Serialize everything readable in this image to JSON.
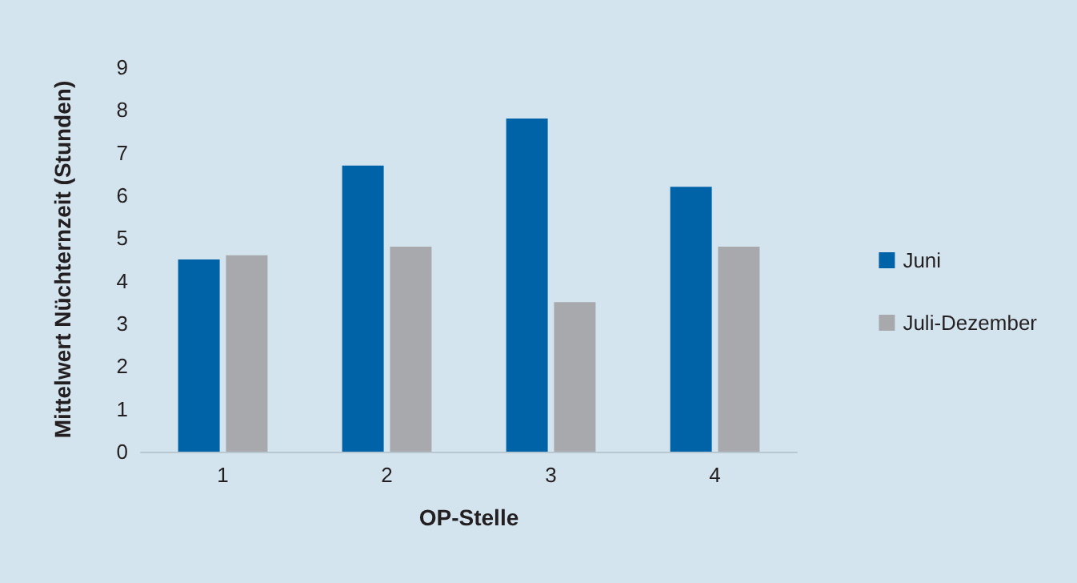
{
  "chart_data": {
    "type": "bar",
    "xlabel": "OP-Stelle",
    "ylabel": "Mittelwert Nüchternzeit (Stunden)",
    "categories": [
      "1",
      "2",
      "3",
      "4"
    ],
    "series": [
      {
        "name": "Juni",
        "color": "#0063a8",
        "values": [
          4.5,
          6.7,
          7.8,
          6.2
        ]
      },
      {
        "name": "Juli-Dezember",
        "color": "#a7a9ac",
        "values": [
          4.6,
          4.8,
          3.5,
          4.8
        ]
      }
    ],
    "ylim": [
      0,
      9
    ],
    "yticks": [
      0,
      1,
      2,
      3,
      4,
      5,
      6,
      7,
      8,
      9
    ],
    "grid": false,
    "legend": "right"
  }
}
